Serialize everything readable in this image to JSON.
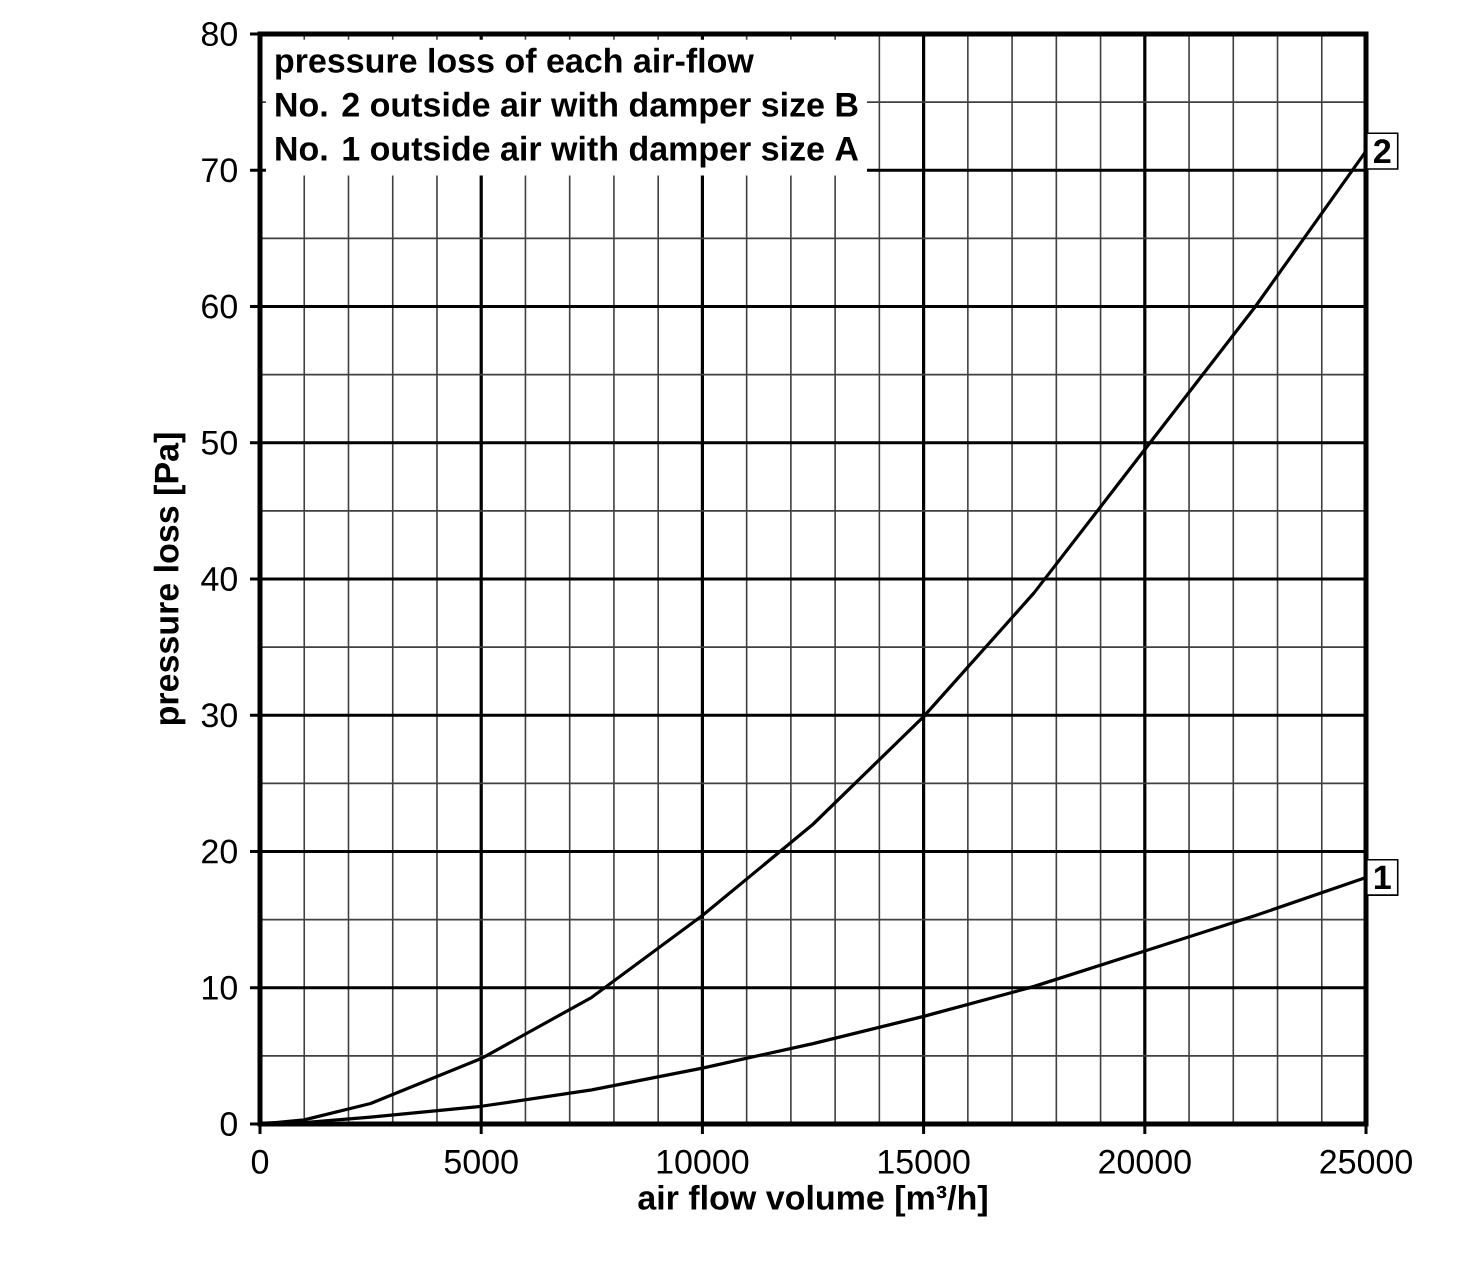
{
  "chart_data": {
    "type": "line",
    "title": "pressure loss of each air-flow",
    "annotations": [
      "No. 2 outside air with damper size B",
      "No. 1 outside air with damper size A"
    ],
    "xlabel": "air flow volume [m³/h]",
    "ylabel": "pressure loss [Pa]",
    "xlim": [
      0,
      25000
    ],
    "ylim": [
      0,
      80
    ],
    "xticks": [
      0,
      5000,
      10000,
      15000,
      20000,
      25000
    ],
    "yticks": [
      0,
      10,
      20,
      30,
      40,
      50,
      60,
      70,
      80
    ],
    "grid": true,
    "line_style": "solid",
    "x": [
      0,
      1000,
      2500,
      5000,
      7500,
      10000,
      12500,
      15000,
      17500,
      20000,
      22500,
      25000
    ],
    "series": [
      {
        "name": "2",
        "color": "#000000",
        "values": [
          0,
          0.3,
          1.5,
          4.8,
          9.3,
          15.3,
          22,
          29.9,
          39,
          49.5,
          60,
          71.4
        ]
      },
      {
        "name": "1",
        "color": "#000000",
        "values": [
          0,
          0.1,
          0.5,
          1.3,
          2.5,
          4.1,
          5.9,
          7.9,
          10.1,
          12.7,
          15.3,
          18.1
        ]
      }
    ]
  }
}
